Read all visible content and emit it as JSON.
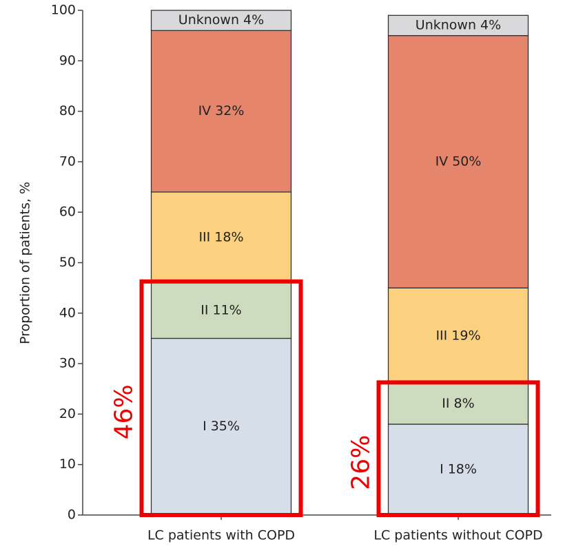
{
  "chart_data": {
    "type": "stacked_bar",
    "ylabel": "Proportion of patients, %",
    "categories": [
      "LC patients with COPD",
      "LC patients without COPD"
    ],
    "series": [
      {
        "name": "I",
        "color": "#d6deea",
        "values": [
          35,
          18
        ],
        "value_labels": [
          "I 35%",
          "I 18%"
        ]
      },
      {
        "name": "II",
        "color": "#cddcbf",
        "values": [
          11,
          8
        ],
        "value_labels": [
          "II 11%",
          "II 8%"
        ]
      },
      {
        "name": "III",
        "color": "#fbd180",
        "values": [
          18,
          19
        ],
        "value_labels": [
          "III 18%",
          "III 19%"
        ]
      },
      {
        "name": "IV",
        "color": "#e4856c",
        "values": [
          32,
          50
        ],
        "value_labels": [
          "IV 32%",
          "IV 50%"
        ]
      },
      {
        "name": "Unknown",
        "color": "#d9d9db",
        "values": [
          4,
          4
        ],
        "value_labels": [
          "Unknown 4%",
          "Unknown 4%"
        ]
      }
    ],
    "ylim": [
      0,
      100
    ],
    "yticks": [
      0,
      10,
      20,
      30,
      40,
      50,
      60,
      70,
      80,
      90,
      100
    ],
    "annotations": [
      {
        "text": "46%",
        "category": "LC patients with COPD",
        "series": [
          "I",
          "II"
        ],
        "color": "#ee0000"
      },
      {
        "text": "26%",
        "category": "LC patients without COPD",
        "series": [
          "I",
          "II"
        ],
        "color": "#ee0000"
      }
    ]
  }
}
